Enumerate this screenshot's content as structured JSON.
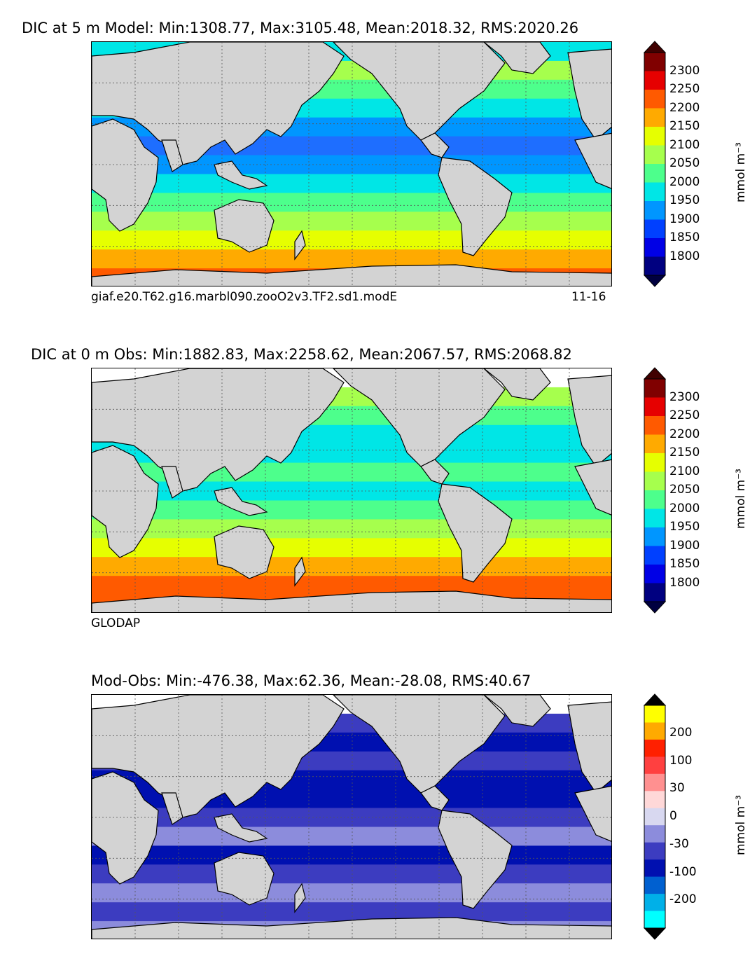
{
  "panels": [
    {
      "title": "DIC at 5 m Model: Min:1308.77, Max:3105.48, Mean:2018.32, RMS:2020.26",
      "caption_left": "giaf.e20.T62.g16.marbl090.zooO2v3.TF2.sd1.modE",
      "caption_right": "11-16",
      "colorbar": {
        "unit": "mmol m⁻³",
        "ticks": [
          "2300",
          "2250",
          "2200",
          "2150",
          "2100",
          "2050",
          "2000",
          "1950",
          "1900",
          "1850",
          "1800"
        ],
        "colors": [
          "#800000",
          "#e60000",
          "#ff5a00",
          "#ffaa00",
          "#e6ff00",
          "#a6ff4d",
          "#4dff8c",
          "#00e6e6",
          "#0096ff",
          "#0040ff",
          "#0000e6",
          "#000080"
        ],
        "over_color": "#400000",
        "under_color": "#000040"
      },
      "zonal_colors": [
        "#00e6e6",
        "#a6ff4d",
        "#4dff8c",
        "#00e6e6",
        "#0096ff",
        "#1e6eff",
        "#0096ff",
        "#00e6e6",
        "#4dff8c",
        "#a6ff4d",
        "#e6ff00",
        "#ffaa00",
        "#ff5a00"
      ]
    },
    {
      "title": "DIC at 0 m Obs: Min:1882.83, Max:2258.62, Mean:2067.57, RMS:2068.82",
      "caption_left": "GLODAP",
      "caption_right": "",
      "colorbar": {
        "unit": "mmol m⁻³",
        "ticks": [
          "2300",
          "2250",
          "2200",
          "2150",
          "2100",
          "2050",
          "2000",
          "1950",
          "1900",
          "1850",
          "1800"
        ],
        "colors": [
          "#800000",
          "#e60000",
          "#ff5a00",
          "#ffaa00",
          "#e6ff00",
          "#a6ff4d",
          "#4dff8c",
          "#00e6e6",
          "#0096ff",
          "#0040ff",
          "#0000e6",
          "#000080"
        ],
        "over_color": "#400000",
        "under_color": "#000040"
      },
      "zonal_colors": [
        "#ffffff",
        "#a6ff4d",
        "#4dff8c",
        "#00e6e6",
        "#00e6e6",
        "#4dff8c",
        "#00e6e6",
        "#4dff8c",
        "#a6ff4d",
        "#e6ff00",
        "#ffaa00",
        "#ff5a00",
        "#ff5a00"
      ]
    },
    {
      "title": "Mod-Obs: Min:-476.38, Max:62.36, Mean:-28.08, RMS:40.67",
      "caption_left": "",
      "caption_right": "",
      "colorbar": {
        "unit": "mmol m⁻³",
        "ticks": [
          "200",
          "100",
          "30",
          "0",
          "-30",
          "-100",
          "-200"
        ],
        "colors": [
          "#ffff00",
          "#ffaa00",
          "#ff2000",
          "#ff4040",
          "#ff9090",
          "#ffd8d8",
          "#d8d8f0",
          "#8c8cdc",
          "#3c3cc0",
          "#0010b0",
          "#0060d0",
          "#00b0e8",
          "#00ffff"
        ],
        "over_color": "#000000",
        "under_color": "#000000"
      },
      "zonal_colors": [
        "#ffffff",
        "#3c3cc0",
        "#0010b0",
        "#3c3cc0",
        "#0010b0",
        "#0010b0",
        "#3c3cc0",
        "#8c8cdc",
        "#0010b0",
        "#3c3cc0",
        "#8c8cdc",
        "#3c3cc0",
        "#8c8cdc"
      ]
    }
  ],
  "land_color": "#d3d3d3"
}
